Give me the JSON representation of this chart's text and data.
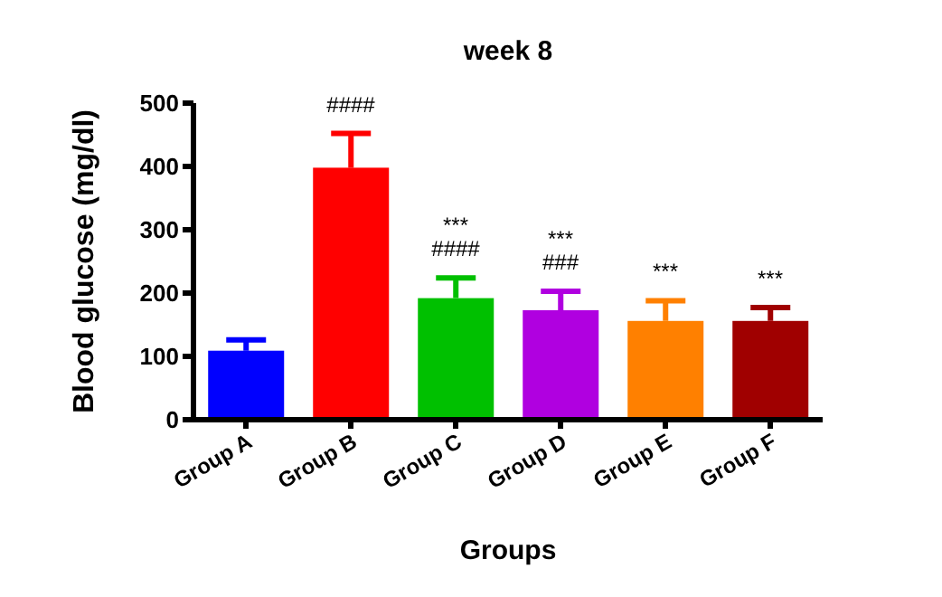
{
  "chart_data": {
    "type": "bar",
    "title": "week 8",
    "xlabel": "Groups",
    "ylabel": "Blood glucose (mg/dl)",
    "categories": [
      "Group A",
      "Group B",
      "Group C",
      "Group D",
      "Group E",
      "Group F"
    ],
    "values": [
      109,
      398,
      192,
      173,
      156,
      156
    ],
    "colors": [
      "#0000ff",
      "#ff0000",
      "#00c000",
      "#b000e0",
      "#ff8000",
      "#a00000"
    ],
    "errors": [
      [
        109,
        126
      ],
      [
        398,
        452
      ],
      [
        192,
        224
      ],
      [
        173,
        203
      ],
      [
        156,
        188
      ],
      [
        156,
        177
      ]
    ],
    "ylim": [
      0,
      500
    ],
    "yticks": [
      0,
      100,
      200,
      300,
      400,
      500
    ],
    "grid": false,
    "legend": false,
    "annotations": [
      {
        "text": "####",
        "x": "Group B",
        "y": 452
      },
      {
        "text": "####",
        "x": "Group C",
        "y": 224
      },
      {
        "text": "***",
        "x": "Group C",
        "y": 224
      },
      {
        "text": "###",
        "x": "Group D",
        "y": 203
      },
      {
        "text": "***",
        "x": "Group D",
        "y": 203
      },
      {
        "text": "***",
        "x": "Group E",
        "y": 188
      },
      {
        "text": "***",
        "x": "Group F",
        "y": 177
      }
    ]
  }
}
